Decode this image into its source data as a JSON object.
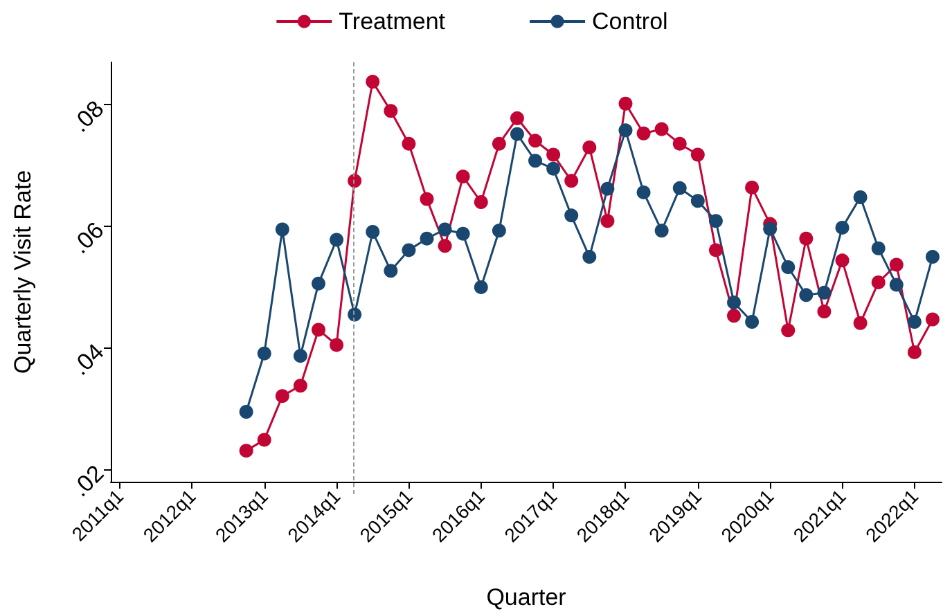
{
  "chart_data": {
    "type": "line",
    "xlabel": "Quarter",
    "ylabel": "Quarterly Visit Rate",
    "categories": [
      "2011q1",
      null,
      null,
      null,
      "2012q1",
      null,
      null,
      null,
      "2013q1",
      null,
      null,
      null,
      "2014q1",
      null,
      null,
      null,
      "2015q1",
      null,
      null,
      null,
      "2016q1",
      null,
      null,
      null,
      "2017q1",
      null,
      null,
      null,
      "2018q1",
      null,
      null,
      null,
      "2019q1",
      null,
      null,
      null,
      "2020q1",
      null,
      null,
      null,
      "2021q1",
      null,
      null,
      null,
      "2022q1",
      null
    ],
    "series": [
      {
        "name": "Treatment",
        "color": "#c10534",
        "values": [
          null,
          null,
          null,
          null,
          null,
          null,
          null,
          0.0231,
          0.0249,
          0.0321,
          0.0338,
          0.043,
          0.0405,
          0.0675,
          0.0838,
          0.079,
          0.0736,
          0.0645,
          0.0568,
          0.0682,
          0.064,
          0.0736,
          0.0778,
          0.0741,
          0.0718,
          0.0675,
          0.073,
          0.0609,
          0.0802,
          0.0753,
          0.076,
          0.0736,
          0.0718,
          0.0561,
          0.0453,
          0.0664,
          0.0604,
          0.0429,
          0.058,
          0.046,
          0.0544,
          0.0441,
          0.0508,
          0.0537,
          0.0393,
          0.0447
        ]
      },
      {
        "name": "Control",
        "color": "#1a476f",
        "values": [
          null,
          null,
          null,
          null,
          null,
          null,
          null,
          0.0295,
          0.0391,
          0.0595,
          0.0387,
          0.0506,
          0.0578,
          0.0455,
          0.0591,
          0.0527,
          0.0561,
          0.058,
          0.0595,
          0.0588,
          0.05,
          0.0593,
          0.0752,
          0.0708,
          0.0695,
          0.0618,
          0.055,
          0.0662,
          0.0758,
          0.0656,
          0.0593,
          0.0663,
          0.0642,
          0.0609,
          0.0475,
          0.0443,
          0.0596,
          0.0533,
          0.0487,
          0.0491,
          0.0598,
          0.0648,
          0.0564,
          0.0504,
          0.0443,
          0.055
        ]
      }
    ],
    "ylim": [
      0.018,
      0.087
    ],
    "yticks": [
      {
        "value": 0.02,
        "label": ".02"
      },
      {
        "value": 0.04,
        "label": ".04"
      },
      {
        "value": 0.06,
        "label": ".06"
      },
      {
        "value": 0.08,
        "label": ".08"
      }
    ],
    "legend": "top",
    "marker": "circle",
    "line_style": "solid"
  }
}
